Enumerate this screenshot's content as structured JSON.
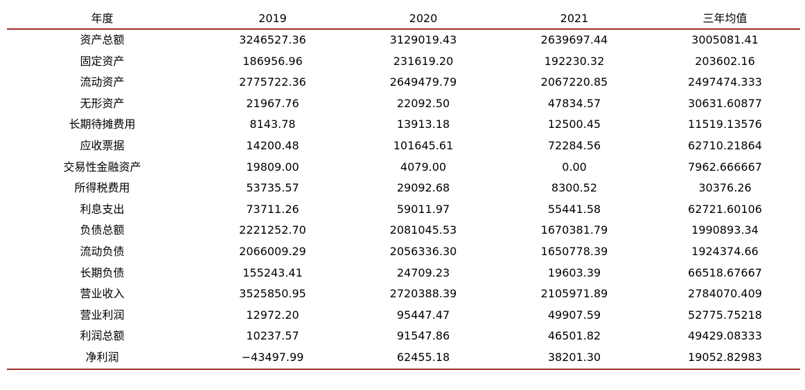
{
  "table": {
    "headers": [
      "年度",
      "2019",
      "2020",
      "2021",
      "三年均值"
    ],
    "rows": [
      [
        "资产总额",
        "3246527.36",
        "3129019.43",
        "2639697.44",
        "3005081.41"
      ],
      [
        "固定资产",
        "186956.96",
        "231619.20",
        "192230.32",
        "203602.16"
      ],
      [
        "流动资产",
        "2775722.36",
        "2649479.79",
        "2067220.85",
        "2497474.333"
      ],
      [
        "无形资产",
        "21967.76",
        "22092.50",
        "47834.57",
        "30631.60877"
      ],
      [
        "长期待摊费用",
        "8143.78",
        "13913.18",
        "12500.45",
        "11519.13576"
      ],
      [
        "应收票据",
        "14200.48",
        "101645.61",
        "72284.56",
        "62710.21864"
      ],
      [
        "交易性金融资产",
        "19809.00",
        "4079.00",
        "0.00",
        "7962.666667"
      ],
      [
        "所得税费用",
        "53735.57",
        "29092.68",
        "8300.52",
        "30376.26"
      ],
      [
        "利息支出",
        "73711.26",
        "59011.97",
        "55441.58",
        "62721.60106"
      ],
      [
        "负债总额",
        "2221252.70",
        "2081045.53",
        "1670381.79",
        "1990893.34"
      ],
      [
        "流动负债",
        "2066009.29",
        "2056336.30",
        "1650778.39",
        "1924374.66"
      ],
      [
        "长期负债",
        "155243.41",
        "24709.23",
        "19603.39",
        "66518.67667"
      ],
      [
        "营业收入",
        "3525850.95",
        "2720388.39",
        "2105971.89",
        "2784070.409"
      ],
      [
        "营业利润",
        "12972.20",
        "95447.47",
        "49907.59",
        "52775.75218"
      ],
      [
        "利润总额",
        "10237.57",
        "91547.86",
        "46501.82",
        "49429.08333"
      ],
      [
        "净利润",
        "−43497.99",
        "62455.18",
        "38201.30",
        "19052.82983"
      ]
    ]
  },
  "colors": {
    "rule": "#9b2a2a"
  }
}
